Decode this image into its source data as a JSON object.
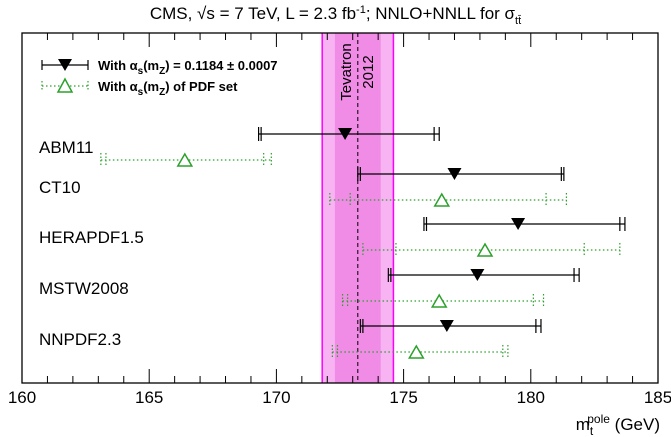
{
  "chart_data": {
    "type": "scatter",
    "title": "CMS, √s = 7 TeV, L = 2.3 fb⁻¹; NNLO+NNLL for σtt̄",
    "title_parts": {
      "t1": "CMS, ",
      "t2": "√",
      "t3": "s = 7 TeV, L = 2.3 fb",
      "t4": "-1",
      "t5": "; NNLO+NNLL for σ",
      "t6": "tt̄"
    },
    "xlabel": {
      "base": "m",
      "sub": "t",
      "sup": "pole",
      "unit": " (GeV)"
    },
    "xlim": [
      160,
      185
    ],
    "xticks": [
      160,
      165,
      170,
      175,
      180,
      185
    ],
    "categories": [
      "ABM11",
      "CT10",
      "HERAPDF1.5",
      "MSTW2008",
      "NNPDF2.3"
    ],
    "series": [
      {
        "name": "With αs(mZ) = 0.1184 ± 0.0007",
        "legend_parts": {
          "a": "With α",
          "b": "s",
          "c": "(m",
          "d": "Z",
          "e": ") = 0.1184 ± 0.0007"
        },
        "marker": "triangle-down",
        "color": "#000000",
        "line": "solid",
        "points": [
          {
            "x": 172.7,
            "err_low": 3.4,
            "err_high": 3.7,
            "inner_low": 3.3,
            "inner_high": 3.5
          },
          {
            "x": 177.0,
            "err_low": 3.8,
            "err_high": 4.3,
            "inner_low": 3.7,
            "inner_high": 4.2
          },
          {
            "x": 179.5,
            "err_low": 3.7,
            "err_high": 4.2,
            "inner_low": 3.6,
            "inner_high": 4.0
          },
          {
            "x": 177.9,
            "err_low": 3.5,
            "err_high": 4.0,
            "inner_low": 3.4,
            "inner_high": 3.8
          },
          {
            "x": 176.7,
            "err_low": 3.4,
            "err_high": 3.7,
            "inner_low": 3.3,
            "inner_high": 3.5
          }
        ]
      },
      {
        "name": "With αs(mZ) of PDF set",
        "legend_parts": {
          "a": "With α",
          "b": "s",
          "c": "(m",
          "d": "Z",
          "e": ") of PDF set"
        },
        "marker": "triangle-up-open",
        "color": "#2ca02c",
        "line": "dotted",
        "points": [
          {
            "x": 166.4,
            "err_low": 3.3,
            "err_high": 3.4,
            "inner_low": 3.1,
            "inner_high": 3.1
          },
          {
            "x": 176.5,
            "err_low": 4.4,
            "err_high": 4.9,
            "inner_low": 3.6,
            "inner_high": 4.1
          },
          {
            "x": 178.2,
            "err_low": 4.8,
            "err_high": 5.3,
            "inner_low": 3.5,
            "inner_high": 3.9
          },
          {
            "x": 176.4,
            "err_low": 3.8,
            "err_high": 4.1,
            "inner_low": 3.6,
            "inner_high": 3.7
          },
          {
            "x": 175.5,
            "err_low": 3.3,
            "err_high": 3.6,
            "inner_low": 3.1,
            "inner_high": 3.4
          }
        ]
      }
    ],
    "band": {
      "label_1": "Tevatron",
      "label_2": "2012",
      "center": 173.2,
      "outer": [
        171.8,
        174.6
      ],
      "inner": [
        172.3,
        174.1
      ],
      "color": "#ff00ff"
    },
    "grid": false,
    "legend_position": "top-left"
  }
}
